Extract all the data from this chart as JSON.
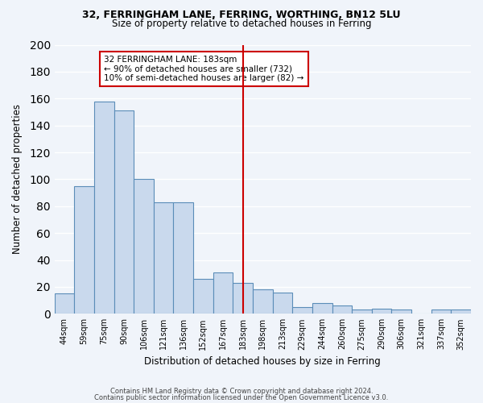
{
  "title1": "32, FERRINGHAM LANE, FERRING, WORTHING, BN12 5LU",
  "title2": "Size of property relative to detached houses in Ferring",
  "xlabel": "Distribution of detached houses by size in Ferring",
  "ylabel": "Number of detached properties",
  "bar_labels": [
    "44sqm",
    "59sqm",
    "75sqm",
    "90sqm",
    "106sqm",
    "121sqm",
    "136sqm",
    "152sqm",
    "167sqm",
    "183sqm",
    "198sqm",
    "213sqm",
    "229sqm",
    "244sqm",
    "260sqm",
    "275sqm",
    "290sqm",
    "306sqm",
    "321sqm",
    "337sqm",
    "352sqm"
  ],
  "bar_values": [
    15,
    95,
    158,
    151,
    100,
    83,
    83,
    26,
    31,
    23,
    18,
    16,
    5,
    8,
    6,
    3,
    4,
    3,
    0,
    3,
    3
  ],
  "bar_color": "#c9d9ed",
  "bar_edgecolor": "#5b8db8",
  "vline_x": 9,
  "vline_color": "#cc0000",
  "annotation_title": "32 FERRINGHAM LANE: 183sqm",
  "annotation_line1": "← 90% of detached houses are smaller (732)",
  "annotation_line2": "10% of semi-detached houses are larger (82) →",
  "annotation_box_edgecolor": "#cc0000",
  "ylim": [
    0,
    200
  ],
  "yticks": [
    0,
    20,
    40,
    60,
    80,
    100,
    120,
    140,
    160,
    180,
    200
  ],
  "footer1": "Contains HM Land Registry data © Crown copyright and database right 2024.",
  "footer2": "Contains public sector information licensed under the Open Government Licence v3.0.",
  "bg_color": "#f0f4fa",
  "grid_color": "#ffffff"
}
